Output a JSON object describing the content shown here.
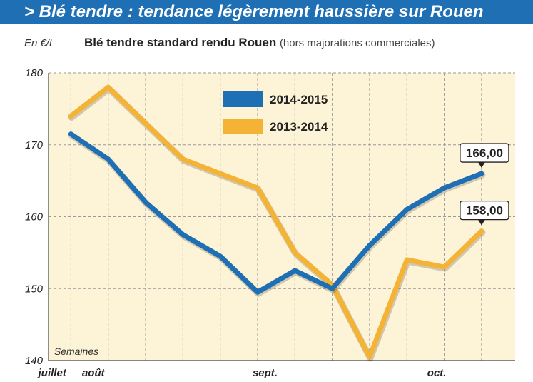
{
  "headline": "> Blé tendre : tendance légèrement haussière sur Rouen",
  "unit_label": "En €/t",
  "chart_data": {
    "type": "line",
    "title": "Blé tendre standard rendu Rouen",
    "subtitle": "(hors majorations commerciales)",
    "xlabel": "Semaines",
    "ylabel": "En €/t",
    "ylim": [
      140,
      180
    ],
    "yticks": [
      140,
      150,
      160,
      170,
      180
    ],
    "x_tick_labels": [
      {
        "label": "juillet",
        "week": 0.5
      },
      {
        "label": "août",
        "week": 1.6
      },
      {
        "label": "sept.",
        "week": 6.2
      },
      {
        "label": "oct.",
        "week": 10.8
      }
    ],
    "grid": true,
    "legend_position": "top-center",
    "series": [
      {
        "name": "2014-2015",
        "color": "#1f6fb5",
        "x": [
          1,
          2,
          3,
          4,
          5,
          6,
          7,
          8,
          9,
          10,
          11,
          12
        ],
        "values": [
          171.5,
          168,
          162,
          157.5,
          154.5,
          149.5,
          152.5,
          150,
          156,
          161,
          164,
          166
        ]
      },
      {
        "name": "2013-2014",
        "color": "#f5b335",
        "x": [
          1,
          2,
          3,
          4,
          5,
          6,
          7,
          8,
          9,
          10,
          11,
          12
        ],
        "values": [
          174,
          178,
          173,
          168,
          166,
          164,
          155,
          150.5,
          140.5,
          154,
          153,
          158
        ]
      }
    ],
    "annotations": [
      {
        "series": "2014-2015",
        "text": "166,00"
      },
      {
        "series": "2013-2014",
        "text": "158,00"
      }
    ]
  }
}
